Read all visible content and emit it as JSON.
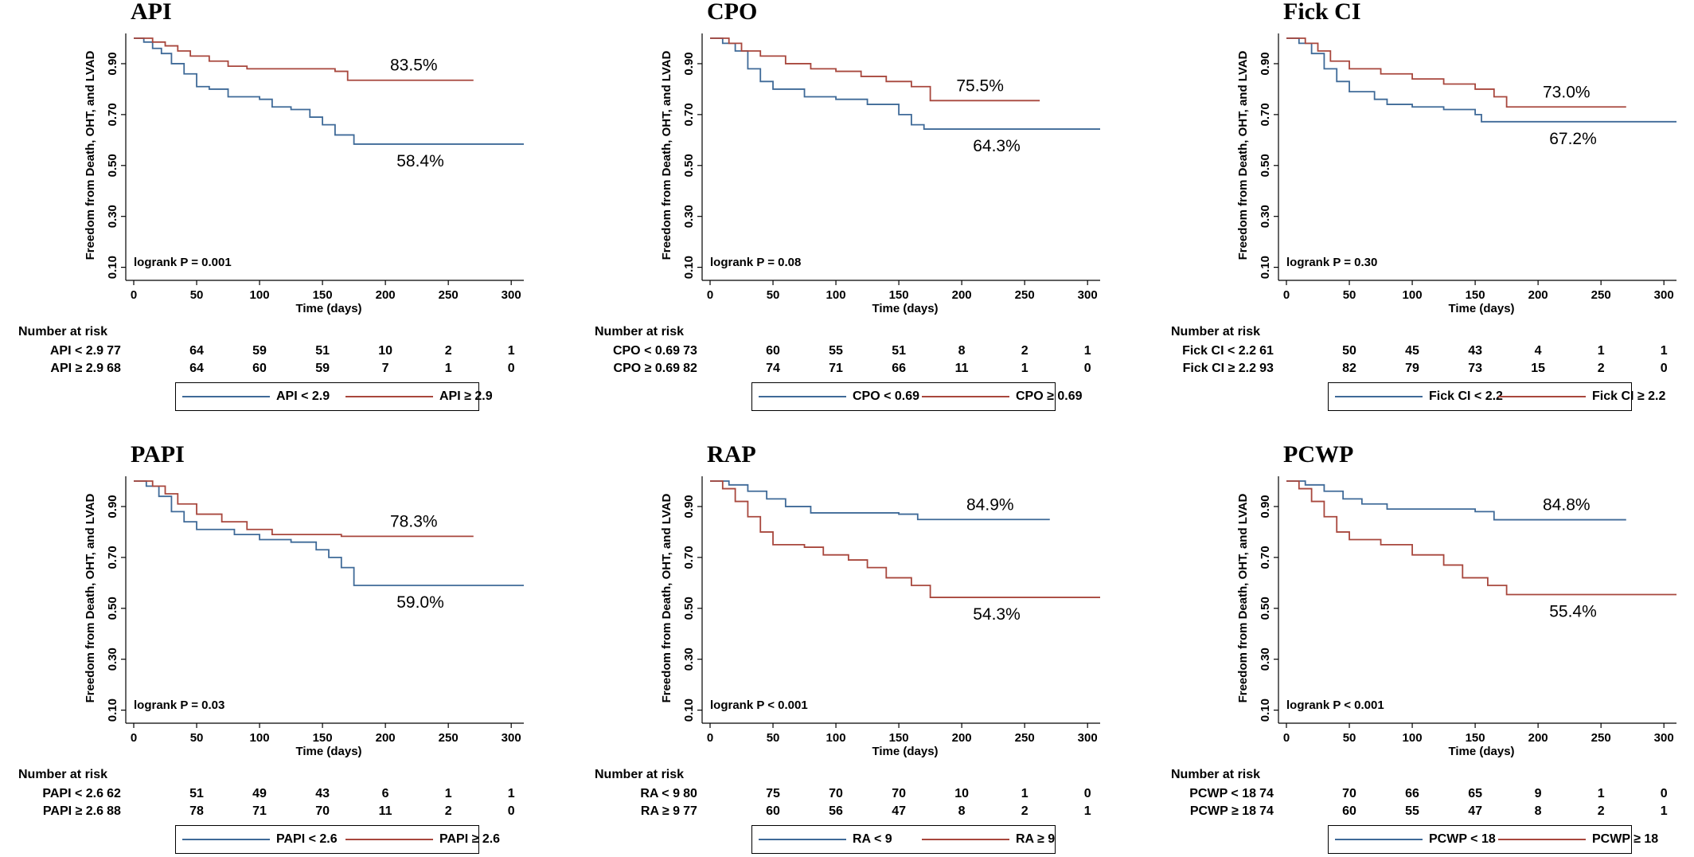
{
  "colors": {
    "blue": "#3f6a98",
    "red": "#a8473d"
  },
  "risk_header": "Number at risk",
  "x_ticks": [
    0,
    50,
    100,
    150,
    200,
    250,
    300
  ],
  "y_ticks": [
    0.1,
    0.3,
    0.5,
    0.7,
    0.9
  ],
  "chart_data": [
    {
      "type": "line",
      "title": "API",
      "xlabel": "Time (days)",
      "ylabel": "Freedom from Death, OHT, and LVAD",
      "xlim": [
        0,
        310
      ],
      "ylim": [
        0.08,
        1.0
      ],
      "pvalue": "logrank P = 0.001",
      "series": [
        {
          "name": "API < 2.9",
          "color": "blue",
          "end_label": "58.4%",
          "end_x": 310,
          "points": [
            [
              0,
              1.0
            ],
            [
              8,
              0.985
            ],
            [
              15,
              0.96
            ],
            [
              22,
              0.94
            ],
            [
              30,
              0.9
            ],
            [
              40,
              0.86
            ],
            [
              50,
              0.81
            ],
            [
              60,
              0.8
            ],
            [
              75,
              0.77
            ],
            [
              100,
              0.76
            ],
            [
              110,
              0.73
            ],
            [
              125,
              0.72
            ],
            [
              140,
              0.69
            ],
            [
              150,
              0.66
            ],
            [
              160,
              0.62
            ],
            [
              175,
              0.584
            ],
            [
              310,
              0.584
            ]
          ]
        },
        {
          "name": "API ≥ 2.9",
          "color": "red",
          "end_label": "83.5%",
          "end_x": 270,
          "points": [
            [
              0,
              1.0
            ],
            [
              15,
              0.985
            ],
            [
              25,
              0.97
            ],
            [
              35,
              0.95
            ],
            [
              45,
              0.93
            ],
            [
              60,
              0.91
            ],
            [
              75,
              0.89
            ],
            [
              90,
              0.88
            ],
            [
              160,
              0.87
            ],
            [
              170,
              0.835
            ],
            [
              270,
              0.835
            ]
          ]
        }
      ],
      "risk": {
        "rows": [
          {
            "label": "API < 2.9",
            "values": [
              "77",
              "64",
              "59",
              "51",
              "10",
              "2",
              "1"
            ]
          },
          {
            "label": "API ≥ 2.9",
            "values": [
              "68",
              "64",
              "60",
              "59",
              "7",
              "1",
              "0"
            ]
          }
        ]
      }
    },
    {
      "type": "line",
      "title": "CPO",
      "xlabel": "Time (days)",
      "ylabel": "Freedom from Death, OHT, and LVAD",
      "xlim": [
        0,
        310
      ],
      "ylim": [
        0.08,
        1.0
      ],
      "pvalue": "logrank P = 0.08",
      "series": [
        {
          "name": "CPO < 0.69",
          "color": "blue",
          "end_label": "64.3%",
          "end_x": 310,
          "points": [
            [
              0,
              1.0
            ],
            [
              10,
              0.98
            ],
            [
              20,
              0.95
            ],
            [
              30,
              0.88
            ],
            [
              40,
              0.83
            ],
            [
              50,
              0.8
            ],
            [
              75,
              0.77
            ],
            [
              100,
              0.76
            ],
            [
              125,
              0.74
            ],
            [
              150,
              0.7
            ],
            [
              160,
              0.66
            ],
            [
              170,
              0.643
            ],
            [
              310,
              0.643
            ]
          ]
        },
        {
          "name": "CPO ≥ 0.69",
          "color": "red",
          "end_label": "75.5%",
          "end_x": 262,
          "points": [
            [
              0,
              1.0
            ],
            [
              15,
              0.98
            ],
            [
              25,
              0.95
            ],
            [
              40,
              0.93
            ],
            [
              60,
              0.9
            ],
            [
              80,
              0.88
            ],
            [
              100,
              0.87
            ],
            [
              120,
              0.85
            ],
            [
              140,
              0.83
            ],
            [
              160,
              0.81
            ],
            [
              175,
              0.755
            ],
            [
              262,
              0.755
            ]
          ]
        }
      ],
      "risk": {
        "rows": [
          {
            "label": "CPO < 0.69",
            "values": [
              "73",
              "60",
              "55",
              "51",
              "8",
              "2",
              "1"
            ]
          },
          {
            "label": "CPO ≥ 0.69",
            "values": [
              "82",
              "74",
              "71",
              "66",
              "11",
              "1",
              "0"
            ]
          }
        ]
      }
    },
    {
      "type": "line",
      "title": "Fick CI",
      "xlabel": "Time (days)",
      "ylabel": "Freedom from Death, OHT, and LVAD",
      "xlim": [
        0,
        310
      ],
      "ylim": [
        0.08,
        1.0
      ],
      "pvalue": "logrank P = 0.30",
      "series": [
        {
          "name": "Fick CI < 2.2",
          "color": "blue",
          "end_label": "67.2%",
          "end_x": 310,
          "points": [
            [
              0,
              1.0
            ],
            [
              10,
              0.98
            ],
            [
              20,
              0.94
            ],
            [
              30,
              0.88
            ],
            [
              40,
              0.83
            ],
            [
              50,
              0.79
            ],
            [
              70,
              0.76
            ],
            [
              80,
              0.74
            ],
            [
              100,
              0.73
            ],
            [
              125,
              0.72
            ],
            [
              150,
              0.7
            ],
            [
              155,
              0.672
            ],
            [
              310,
              0.672
            ]
          ]
        },
        {
          "name": "Fick CI ≥ 2.2",
          "color": "red",
          "end_label": "73.0%",
          "end_x": 270,
          "points": [
            [
              0,
              1.0
            ],
            [
              15,
              0.98
            ],
            [
              25,
              0.95
            ],
            [
              35,
              0.91
            ],
            [
              50,
              0.88
            ],
            [
              75,
              0.86
            ],
            [
              100,
              0.84
            ],
            [
              125,
              0.82
            ],
            [
              150,
              0.8
            ],
            [
              165,
              0.77
            ],
            [
              175,
              0.73
            ],
            [
              270,
              0.73
            ]
          ]
        }
      ],
      "risk": {
        "rows": [
          {
            "label": "Fick CI < 2.2",
            "values": [
              "61",
              "50",
              "45",
              "43",
              "4",
              "1",
              "1"
            ]
          },
          {
            "label": "Fick CI ≥ 2.2",
            "values": [
              "93",
              "82",
              "79",
              "73",
              "15",
              "2",
              "0"
            ]
          }
        ]
      }
    },
    {
      "type": "line",
      "title": "PAPI",
      "xlabel": "Time (days)",
      "ylabel": "Freedom from Death, OHT, and LVAD",
      "xlim": [
        0,
        310
      ],
      "ylim": [
        0.08,
        1.0
      ],
      "pvalue": "logrank P = 0.03",
      "series": [
        {
          "name": "PAPI < 2.6",
          "color": "blue",
          "end_label": "59.0%",
          "end_x": 310,
          "points": [
            [
              0,
              1.0
            ],
            [
              10,
              0.98
            ],
            [
              20,
              0.94
            ],
            [
              30,
              0.88
            ],
            [
              40,
              0.84
            ],
            [
              50,
              0.81
            ],
            [
              80,
              0.79
            ],
            [
              100,
              0.77
            ],
            [
              125,
              0.76
            ],
            [
              145,
              0.73
            ],
            [
              155,
              0.7
            ],
            [
              165,
              0.66
            ],
            [
              175,
              0.59
            ],
            [
              310,
              0.59
            ]
          ]
        },
        {
          "name": "PAPI ≥ 2.6",
          "color": "red",
          "end_label": "78.3%",
          "end_x": 270,
          "points": [
            [
              0,
              1.0
            ],
            [
              15,
              0.98
            ],
            [
              25,
              0.95
            ],
            [
              35,
              0.91
            ],
            [
              50,
              0.87
            ],
            [
              70,
              0.84
            ],
            [
              90,
              0.81
            ],
            [
              110,
              0.79
            ],
            [
              165,
              0.783
            ],
            [
              270,
              0.783
            ]
          ]
        }
      ],
      "risk": {
        "rows": [
          {
            "label": "PAPI < 2.6",
            "values": [
              "62",
              "51",
              "49",
              "43",
              "6",
              "1",
              "1"
            ]
          },
          {
            "label": "PAPI ≥ 2.6",
            "values": [
              "88",
              "78",
              "71",
              "70",
              "11",
              "2",
              "0"
            ]
          }
        ]
      }
    },
    {
      "type": "line",
      "title": "RAP",
      "xlabel": "Time (days)",
      "ylabel": "Freedom from Death, OHT, and LVAD",
      "xlim": [
        0,
        310
      ],
      "ylim": [
        0.08,
        1.0
      ],
      "pvalue": "logrank P < 0.001",
      "series": [
        {
          "name": "RA < 9",
          "color": "blue",
          "end_label": "84.9%",
          "end_x": 270,
          "points": [
            [
              0,
              1.0
            ],
            [
              15,
              0.985
            ],
            [
              30,
              0.96
            ],
            [
              45,
              0.93
            ],
            [
              60,
              0.9
            ],
            [
              80,
              0.875
            ],
            [
              150,
              0.87
            ],
            [
              165,
              0.849
            ],
            [
              270,
              0.849
            ]
          ]
        },
        {
          "name": "RA ≥ 9",
          "color": "red",
          "end_label": "54.3%",
          "end_x": 310,
          "points": [
            [
              0,
              1.0
            ],
            [
              10,
              0.97
            ],
            [
              20,
              0.92
            ],
            [
              30,
              0.86
            ],
            [
              40,
              0.8
            ],
            [
              50,
              0.75
            ],
            [
              75,
              0.74
            ],
            [
              90,
              0.71
            ],
            [
              110,
              0.69
            ],
            [
              125,
              0.66
            ],
            [
              140,
              0.62
            ],
            [
              160,
              0.59
            ],
            [
              175,
              0.543
            ],
            [
              310,
              0.543
            ]
          ]
        }
      ],
      "risk": {
        "rows": [
          {
            "label": "RA < 9",
            "values": [
              "80",
              "75",
              "70",
              "70",
              "10",
              "1",
              "0"
            ]
          },
          {
            "label": "RA ≥ 9",
            "values": [
              "77",
              "60",
              "56",
              "47",
              "8",
              "2",
              "1"
            ]
          }
        ]
      }
    },
    {
      "type": "line",
      "title": "PCWP",
      "xlabel": "Time (days)",
      "ylabel": "Freedom from Death, OHT, and LVAD",
      "xlim": [
        0,
        310
      ],
      "ylim": [
        0.08,
        1.0
      ],
      "pvalue": "logrank P < 0.001",
      "series": [
        {
          "name": "PCWP < 18",
          "color": "blue",
          "end_label": "84.8%",
          "end_x": 270,
          "points": [
            [
              0,
              1.0
            ],
            [
              15,
              0.985
            ],
            [
              30,
              0.96
            ],
            [
              45,
              0.93
            ],
            [
              60,
              0.91
            ],
            [
              80,
              0.89
            ],
            [
              150,
              0.88
            ],
            [
              165,
              0.848
            ],
            [
              270,
              0.848
            ]
          ]
        },
        {
          "name": "PCWP ≥ 18",
          "color": "red",
          "end_label": "55.4%",
          "end_x": 310,
          "points": [
            [
              0,
              1.0
            ],
            [
              10,
              0.97
            ],
            [
              20,
              0.92
            ],
            [
              30,
              0.86
            ],
            [
              40,
              0.8
            ],
            [
              50,
              0.77
            ],
            [
              75,
              0.75
            ],
            [
              100,
              0.71
            ],
            [
              125,
              0.67
            ],
            [
              140,
              0.62
            ],
            [
              160,
              0.59
            ],
            [
              175,
              0.554
            ],
            [
              310,
              0.554
            ]
          ]
        }
      ],
      "risk": {
        "rows": [
          {
            "label": "PCWP < 18",
            "values": [
              "74",
              "70",
              "66",
              "65",
              "9",
              "1",
              "0"
            ]
          },
          {
            "label": "PCWP ≥ 18",
            "values": [
              "74",
              "60",
              "55",
              "47",
              "8",
              "2",
              "1"
            ]
          }
        ]
      }
    }
  ]
}
